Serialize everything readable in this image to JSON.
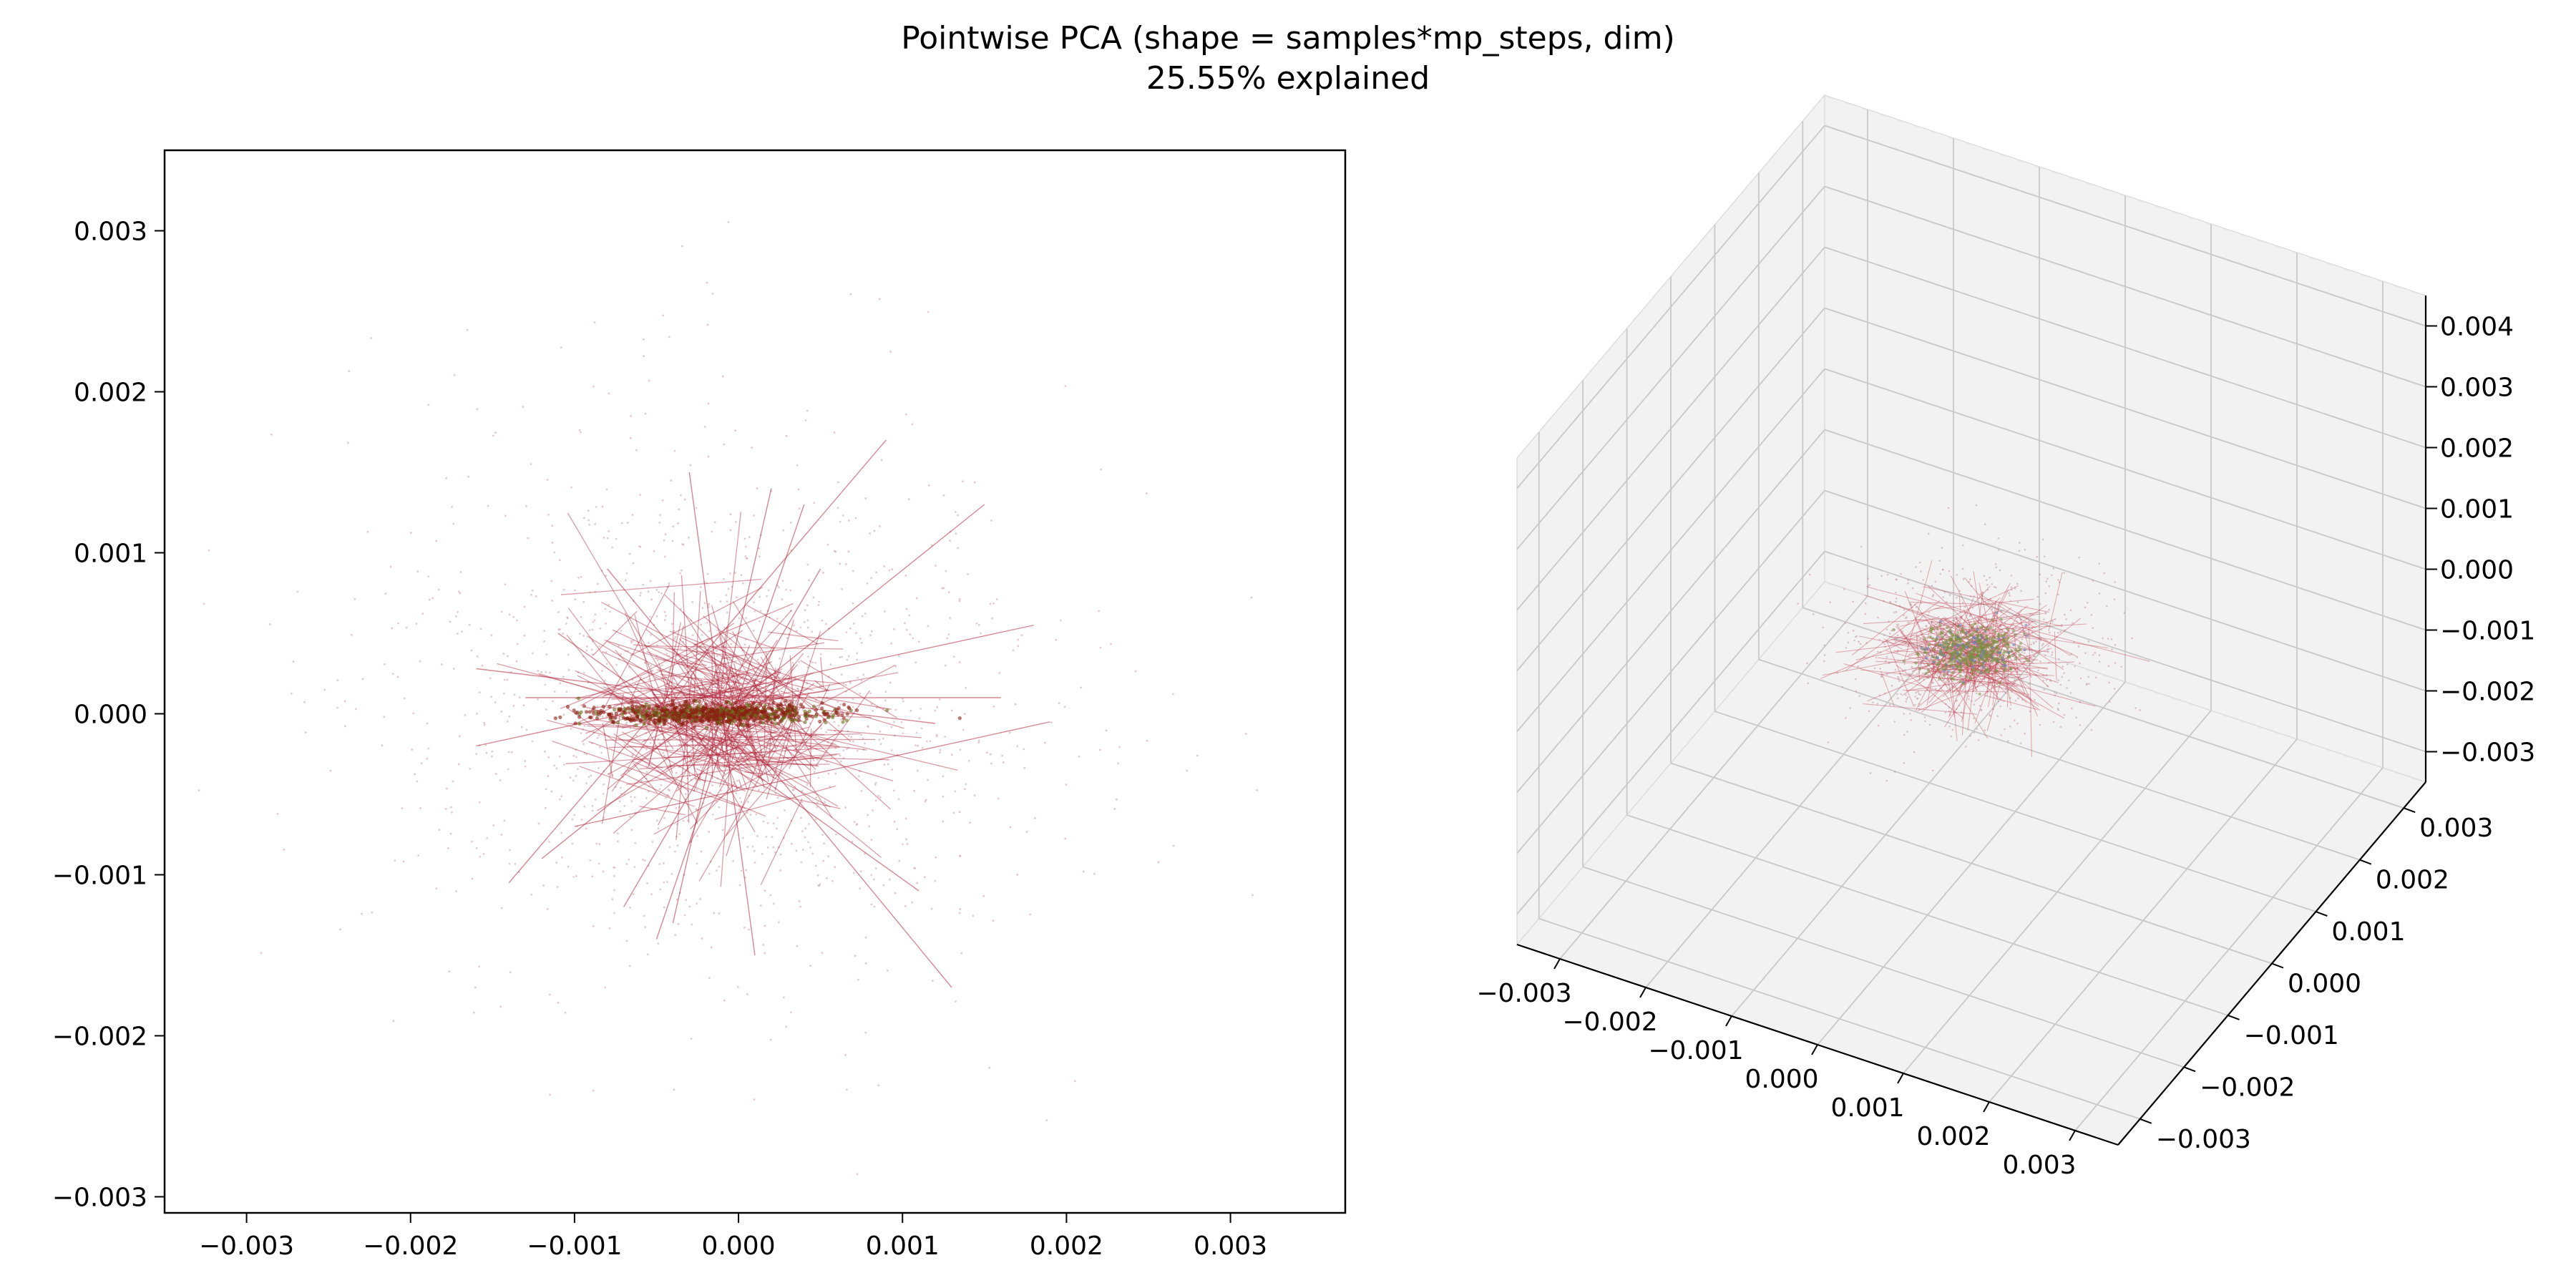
{
  "figure": {
    "title_line1": "Pointwise PCA (shape = samples*mp_steps, dim)",
    "title_line2": "25.55% explained"
  },
  "chart_data": [
    {
      "type": "scatter",
      "panel": "2d",
      "title": "",
      "xlabel": "",
      "ylabel": "",
      "xlim": [
        -0.0035,
        0.0037
      ],
      "ylim": [
        -0.0031,
        0.0035
      ],
      "xticks": [
        -0.003,
        -0.002,
        -0.001,
        0.0,
        0.001,
        0.002,
        0.003
      ],
      "xtick_labels": [
        "−0.003",
        "−0.002",
        "−0.001",
        "0.000",
        "0.001",
        "0.002",
        "0.003"
      ],
      "yticks": [
        -0.003,
        -0.002,
        -0.001,
        0.0,
        0.001,
        0.002,
        0.003
      ],
      "ytick_labels": [
        "−0.003",
        "−0.002",
        "−0.001",
        "0.000",
        "0.001",
        "0.002",
        "0.003"
      ],
      "grid": false,
      "point_color": "#c8a0a8",
      "line_color": "#b0283c",
      "core_color": "#8a1e10",
      "core_accent_color": "#6b6a1a",
      "cluster_center": [
        -0.00015,
        0.0
      ],
      "cluster_spread": [
        0.0009,
        0.0007
      ],
      "core_spread": [
        0.00035,
        3e-05
      ],
      "trajectory_segments": [
        [
          [
            -0.0016,
            0.00028
          ],
          [
            0.0012,
            -6e-05
          ]
        ],
        [
          [
            -0.0016,
            -0.0002
          ],
          [
            0.0018,
            0.00055
          ]
        ],
        [
          [
            -0.0014,
            -0.00105
          ],
          [
            0.0009,
            0.0017
          ]
        ],
        [
          [
            -0.0012,
            -0.0009
          ],
          [
            0.0015,
            0.0013
          ]
        ],
        [
          [
            -0.0005,
            -0.0014
          ],
          [
            0.0004,
            0.0013
          ]
        ],
        [
          [
            -0.0003,
            0.0015
          ],
          [
            0.0001,
            -0.0015
          ]
        ],
        [
          [
            -0.0008,
            0.0009
          ],
          [
            0.0013,
            -0.0017
          ]
        ],
        [
          [
            -0.001,
            -0.0007
          ],
          [
            0.0019,
            -5e-05
          ]
        ],
        [
          [
            0.0002,
            0.0014
          ],
          [
            -0.0004,
            -0.0013
          ]
        ],
        [
          [
            -0.0011,
            0.0005
          ],
          [
            0.0011,
            -0.0011
          ]
        ],
        [
          [
            -0.0007,
            -0.0012
          ],
          [
            0.0005,
            0.0009
          ]
        ],
        [
          [
            -0.0013,
            0.0001
          ],
          [
            0.0016,
            0.0001
          ]
        ]
      ]
    },
    {
      "type": "scatter",
      "panel": "3d",
      "title": "",
      "xlabel": "",
      "ylabel": "",
      "zlabel": "",
      "xlim": [
        -0.0035,
        0.0035
      ],
      "ylim": [
        -0.0035,
        0.0035
      ],
      "zlim": [
        -0.0035,
        0.0045
      ],
      "xticks": [
        -0.003,
        -0.002,
        -0.001,
        0.0,
        0.001,
        0.002,
        0.003
      ],
      "xtick_labels": [
        "−0.003",
        "−0.002",
        "−0.001",
        "0.000",
        "0.001",
        "0.002",
        "0.003"
      ],
      "yticks": [
        -0.003,
        -0.002,
        -0.001,
        0.0,
        0.001,
        0.002,
        0.003
      ],
      "ytick_labels": [
        "−0.003",
        "−0.002",
        "−0.001",
        "0.000",
        "0.001",
        "0.002",
        "0.003"
      ],
      "zticks": [
        -0.003,
        -0.002,
        -0.001,
        0.0,
        0.001,
        0.002,
        0.003,
        0.004
      ],
      "ztick_labels": [
        "−0.003",
        "−0.002",
        "−0.001",
        "0.000",
        "0.001",
        "0.002",
        "0.003",
        "0.004"
      ],
      "grid": true,
      "pane_color": "#f2f2f2",
      "grid_color": "#c8c8c8",
      "point_color": "#c090a0",
      "line_color": "#c04050",
      "core_color": "#7a9040",
      "core_accent_color": "#6a7ab0",
      "cluster_center": [
        0.0,
        0.0,
        0.0
      ]
    }
  ]
}
